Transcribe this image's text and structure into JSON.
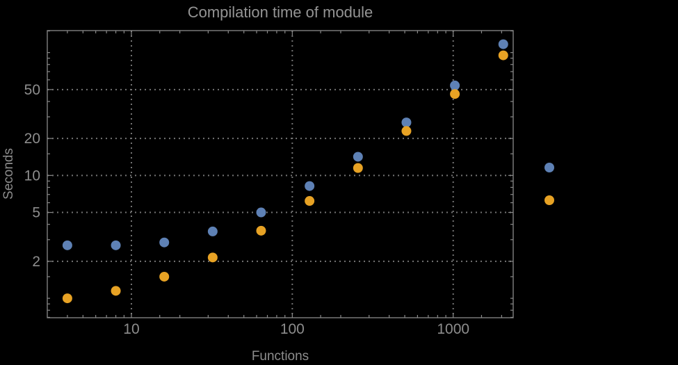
{
  "title": "Compilation time of module",
  "colors": {
    "background": "#000000",
    "series_blue": "#5e81b5",
    "series_orange": "#e7a224",
    "text": "#8d8d8d",
    "frame": "#8a8a8a",
    "grid": "#757575"
  },
  "chart_data": {
    "type": "scatter",
    "title": "Compilation time of module",
    "xlabel": "Functions",
    "ylabel": "Seconds",
    "xscale": "log",
    "yscale": "log",
    "xlim": [
      3,
      2360
    ],
    "ylim": [
      0.695,
      151
    ],
    "grid": true,
    "x": [
      4,
      8,
      16,
      32,
      64,
      128,
      256,
      512,
      1024,
      2048
    ],
    "series": [
      {
        "name": "blue",
        "color": "#5e81b5",
        "values": [
          2.7,
          2.7,
          2.85,
          3.5,
          5.0,
          8.2,
          14.2,
          27,
          54,
          117
        ]
      },
      {
        "name": "orange",
        "color": "#e7a224",
        "values": [
          1.0,
          1.15,
          1.5,
          2.15,
          3.55,
          6.2,
          11.5,
          23,
          46,
          95
        ]
      }
    ],
    "x_ticks": {
      "values": [
        10,
        100,
        1000
      ],
      "labels": [
        "10",
        "100",
        "1000"
      ]
    },
    "y_ticks": {
      "values": [
        2,
        5,
        10,
        20,
        50
      ],
      "labels": [
        "2",
        "5",
        "10",
        "20",
        "50"
      ]
    },
    "legend_position": "right"
  },
  "legend": {
    "markers": [
      {
        "series": "blue",
        "color": "#5e81b5"
      },
      {
        "series": "orange",
        "color": "#e7a224"
      }
    ]
  }
}
